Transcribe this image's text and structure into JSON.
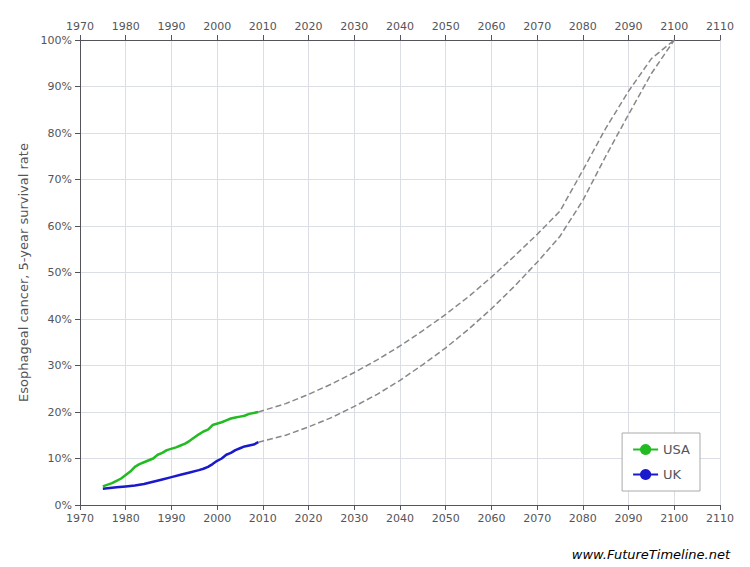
{
  "chart_data": {
    "type": "line",
    "ylabel": "Esophageal cancer, 5-year survival rate",
    "annotations": [
      "www.FutureTimeline.net"
    ],
    "xlim": [
      1970,
      2110
    ],
    "xticks": [
      1970,
      1980,
      1990,
      2000,
      2010,
      2020,
      2030,
      2040,
      2050,
      2060,
      2070,
      2080,
      2090,
      2100,
      2110
    ],
    "ylim": [
      0,
      1.0
    ],
    "yticks": [
      {
        "value": 0.0,
        "label": "0%"
      },
      {
        "value": 0.1,
        "label": "10%"
      },
      {
        "value": 0.2,
        "label": "20%"
      },
      {
        "value": 0.3,
        "label": "30%"
      },
      {
        "value": 0.4,
        "label": "40%"
      },
      {
        "value": 0.5,
        "label": "50%"
      },
      {
        "value": 0.6,
        "label": "60%"
      },
      {
        "value": 0.7,
        "label": "70%"
      },
      {
        "value": 0.8,
        "label": "80%"
      },
      {
        "value": 0.9,
        "label": "90%"
      },
      {
        "value": 1.0,
        "label": "100%"
      }
    ],
    "grid": true,
    "legend": "lower right",
    "series": [
      {
        "color": "#888888",
        "line_style": "dashed",
        "x": [
          2009,
          2015,
          2020,
          2025,
          2030,
          2035,
          2040,
          2045,
          2050,
          2055,
          2060,
          2065,
          2070,
          2075,
          2080,
          2085,
          2090,
          2095,
          2100
        ],
        "values": [
          0.2,
          0.218,
          0.238,
          0.26,
          0.285,
          0.312,
          0.342,
          0.375,
          0.41,
          0.448,
          0.49,
          0.535,
          0.582,
          0.632,
          0.72,
          0.81,
          0.89,
          0.96,
          1.0
        ]
      },
      {
        "color": "#888888",
        "line_style": "dashed",
        "x": [
          2009,
          2015,
          2020,
          2025,
          2030,
          2035,
          2040,
          2045,
          2050,
          2055,
          2060,
          2065,
          2070,
          2075,
          2080,
          2085,
          2090,
          2095,
          2100
        ],
        "values": [
          0.135,
          0.15,
          0.168,
          0.188,
          0.212,
          0.238,
          0.268,
          0.302,
          0.338,
          0.378,
          0.422,
          0.47,
          0.522,
          0.578,
          0.655,
          0.75,
          0.84,
          0.928,
          1.0
        ]
      },
      {
        "name": "USA",
        "color": "#22bb22",
        "line_style": "solid",
        "x": [
          1975,
          1977,
          1978,
          1979,
          1981,
          1982,
          1983,
          1984,
          1986,
          1987,
          1988,
          1989,
          1991,
          1992,
          1993,
          1994,
          1996,
          1997,
          1998,
          1999,
          2001,
          2002,
          2003,
          2004,
          2005,
          2006,
          2007,
          2008,
          2009
        ],
        "values": [
          0.04,
          0.047,
          0.052,
          0.057,
          0.072,
          0.082,
          0.088,
          0.092,
          0.1,
          0.108,
          0.112,
          0.118,
          0.124,
          0.128,
          0.132,
          0.138,
          0.152,
          0.158,
          0.162,
          0.172,
          0.178,
          0.182,
          0.186,
          0.188,
          0.19,
          0.192,
          0.196,
          0.198,
          0.2
        ]
      },
      {
        "name": "UK",
        "color": "#1a1acc",
        "line_style": "solid",
        "x": [
          1975,
          1978,
          1980,
          1982,
          1984,
          1986,
          1988,
          1990,
          1992,
          1994,
          1996,
          1997,
          1998,
          1999,
          2000,
          2001,
          2002,
          2003,
          2004,
          2005,
          2006,
          2007,
          2008,
          2009
        ],
        "values": [
          0.035,
          0.038,
          0.04,
          0.042,
          0.045,
          0.05,
          0.055,
          0.06,
          0.065,
          0.07,
          0.075,
          0.078,
          0.082,
          0.088,
          0.095,
          0.1,
          0.108,
          0.112,
          0.118,
          0.122,
          0.126,
          0.128,
          0.13,
          0.135
        ]
      }
    ]
  }
}
